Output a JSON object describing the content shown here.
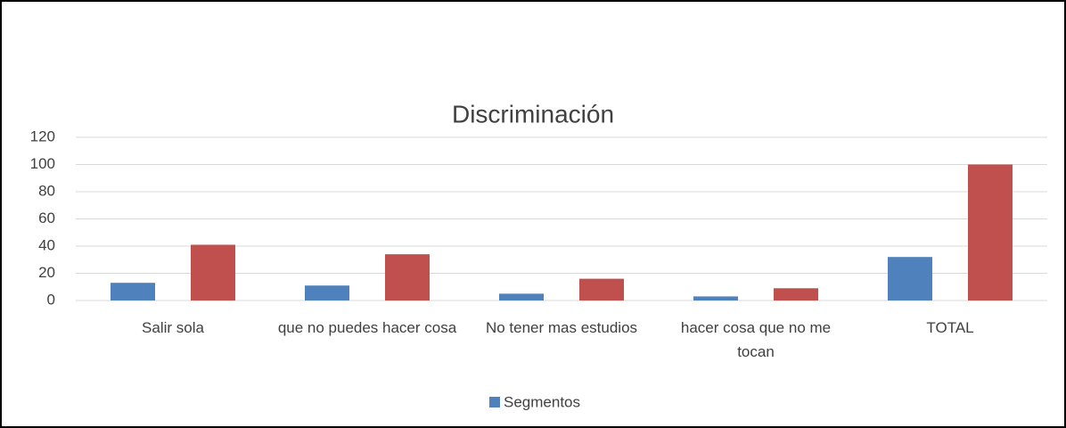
{
  "chart_data": {
    "type": "bar",
    "title": "Discriminación",
    "categories": [
      "Salir sola",
      "que no puedes hacer cosa",
      "No tener mas estudios",
      "hacer cosa que no me tocan",
      "TOTAL"
    ],
    "series": [
      {
        "name": "Segmentos",
        "color": "#4f81bd",
        "values": [
          13,
          11,
          5,
          3,
          32
        ]
      },
      {
        "color": "#c0504d",
        "values": [
          41,
          34,
          16,
          9,
          100
        ]
      }
    ],
    "ylim": [
      0,
      120
    ],
    "yticks": [
      0,
      20,
      40,
      60,
      80,
      100,
      120
    ],
    "grid": true,
    "legend": "bottom"
  }
}
